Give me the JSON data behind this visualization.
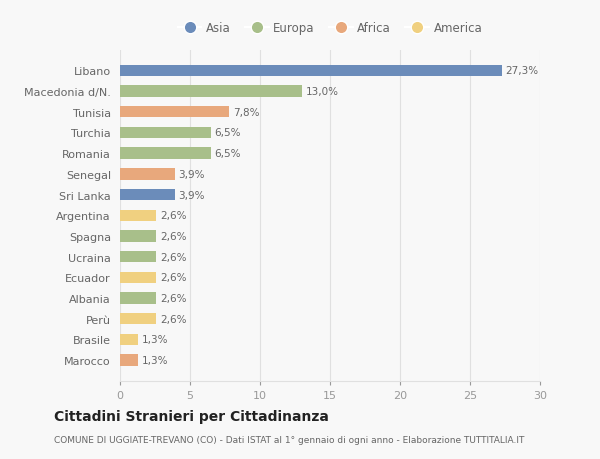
{
  "countries": [
    "Libano",
    "Macedonia d/N.",
    "Tunisia",
    "Turchia",
    "Romania",
    "Senegal",
    "Sri Lanka",
    "Argentina",
    "Spagna",
    "Ucraina",
    "Ecuador",
    "Albania",
    "Perù",
    "Brasile",
    "Marocco"
  ],
  "values": [
    27.3,
    13.0,
    7.8,
    6.5,
    6.5,
    3.9,
    3.9,
    2.6,
    2.6,
    2.6,
    2.6,
    2.6,
    2.6,
    1.3,
    1.3
  ],
  "labels": [
    "27,3%",
    "13,0%",
    "7,8%",
    "6,5%",
    "6,5%",
    "3,9%",
    "3,9%",
    "2,6%",
    "2,6%",
    "2,6%",
    "2,6%",
    "2,6%",
    "2,6%",
    "1,3%",
    "1,3%"
  ],
  "colors": [
    "#6b8cba",
    "#a8bf8a",
    "#e8a87c",
    "#a8bf8a",
    "#a8bf8a",
    "#e8a87c",
    "#6b8cba",
    "#f0d080",
    "#a8bf8a",
    "#a8bf8a",
    "#f0d080",
    "#a8bf8a",
    "#f0d080",
    "#f0d080",
    "#e8a87c"
  ],
  "legend_labels": [
    "Asia",
    "Europa",
    "Africa",
    "America"
  ],
  "legend_colors": [
    "#6b8cba",
    "#a8bf8a",
    "#e8a87c",
    "#f0d080"
  ],
  "title": "Cittadini Stranieri per Cittadinanza",
  "subtitle": "COMUNE DI UGGIATE-TREVANO (CO) - Dati ISTAT al 1° gennaio di ogni anno - Elaborazione TUTTITALIA.IT",
  "xlim": [
    0,
    30
  ],
  "xticks": [
    0,
    5,
    10,
    15,
    20,
    25,
    30
  ],
  "background_color": "#f8f8f8",
  "grid_color": "#e0e0e0",
  "bar_height": 0.55
}
